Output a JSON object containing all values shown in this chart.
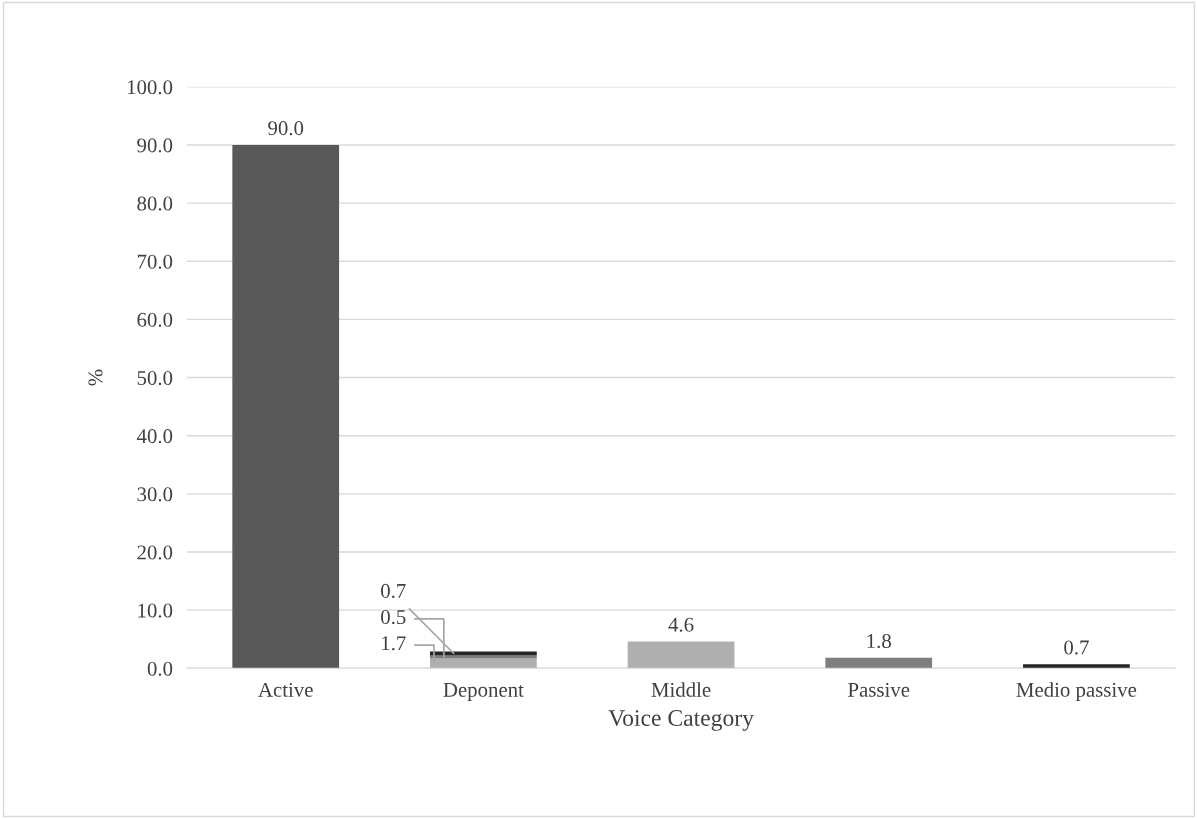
{
  "chart_data": {
    "type": "bar",
    "stacked": true,
    "xlabel": "Voice Category",
    "ylabel": "%",
    "categories": [
      "Active",
      "Deponent",
      "Middle",
      "Passive",
      "Medio passive"
    ],
    "series": [
      {
        "color": "#595959",
        "values": [
          90.0,
          null,
          null,
          null,
          null
        ],
        "value_labels": [
          "90.0",
          null,
          null,
          null,
          null
        ]
      },
      {
        "color": "#afafaf",
        "values": [
          null,
          1.7,
          4.6,
          null,
          null
        ],
        "value_labels": [
          null,
          "1.7",
          "4.6",
          null,
          null
        ]
      },
      {
        "color": "#7f7f7f",
        "values": [
          null,
          0.5,
          null,
          1.8,
          null
        ],
        "value_labels": [
          null,
          "0.5",
          null,
          "1.8",
          null
        ]
      },
      {
        "color": "#262626",
        "values": [
          null,
          0.7,
          null,
          null,
          0.7
        ],
        "value_labels": [
          null,
          "0.7",
          null,
          null,
          "0.7"
        ]
      }
    ],
    "ylim": [
      0,
      100
    ],
    "yticks": [
      {
        "value": 0,
        "label": "0.0"
      },
      {
        "value": 10,
        "label": "10.0"
      },
      {
        "value": 20,
        "label": "20.0"
      },
      {
        "value": 30,
        "label": "30.0"
      },
      {
        "value": 40,
        "label": "40.0"
      },
      {
        "value": 50,
        "label": "50.0"
      },
      {
        "value": 60,
        "label": "60.0"
      },
      {
        "value": 70,
        "label": "70.0"
      },
      {
        "value": 80,
        "label": "80.0"
      },
      {
        "value": 90,
        "label": "90.0"
      },
      {
        "value": 100,
        "label": "100.0"
      }
    ],
    "grid": "y"
  }
}
